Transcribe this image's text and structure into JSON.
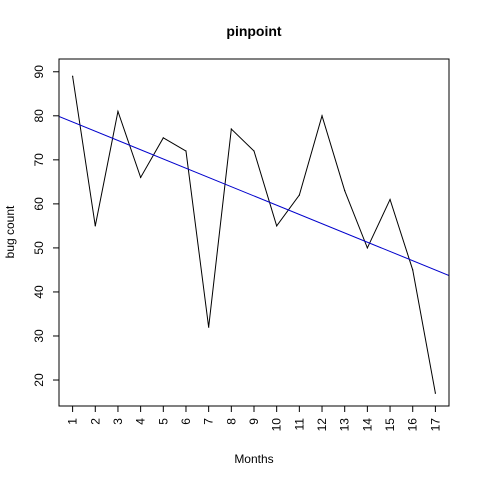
{
  "chart_data": {
    "type": "line",
    "title": "pinpoint",
    "xlabel": "Months",
    "ylabel": "bug count",
    "x": [
      1,
      2,
      3,
      4,
      5,
      6,
      7,
      8,
      9,
      10,
      11,
      12,
      13,
      14,
      15,
      16,
      17
    ],
    "x_tick_labels": [
      "1",
      "2",
      "3",
      "4",
      "5",
      "6",
      "7",
      "8",
      "9",
      "10",
      "11",
      "12",
      "13",
      "14",
      "15",
      "16",
      "17"
    ],
    "y_ticks": [
      20,
      30,
      40,
      50,
      60,
      70,
      80,
      90
    ],
    "series": [
      {
        "values": [
          89,
          55,
          81,
          66,
          75,
          72,
          32,
          77,
          72,
          55,
          62,
          80,
          63,
          50,
          61,
          45,
          17
        ],
        "color": "#000000"
      }
    ],
    "trend_line": {
      "intercept": 80.7,
      "slope": -2.1,
      "color": "#0000cc"
    },
    "xlim": [
      0.4,
      17.6
    ],
    "ylim": [
      14.1,
      92.9
    ],
    "grid": false,
    "legend": "none"
  }
}
